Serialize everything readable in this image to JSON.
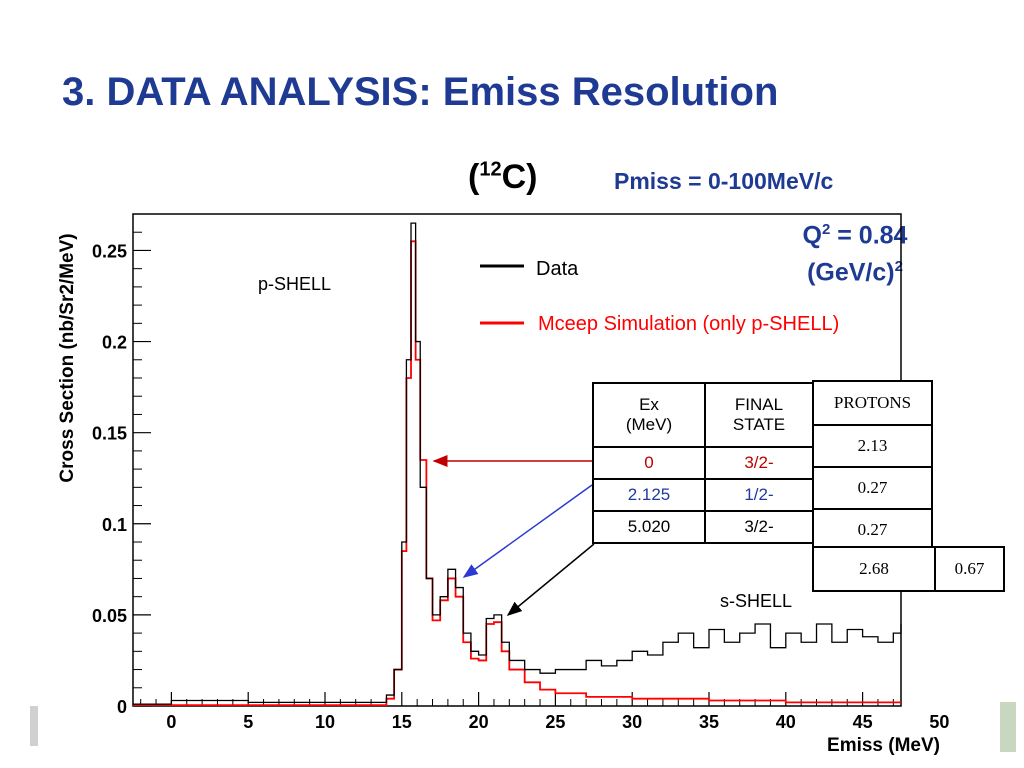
{
  "slide": {
    "title": "3. DATA ANALYSIS: Emiss Resolution",
    "nucleus_open": "(",
    "nucleus_mass": "12",
    "nucleus_symbol": "C)",
    "pmiss": "Pmiss = 0-100MeV/c",
    "q2_line1_prefix": "Q",
    "q2_sup": "2",
    "q2_line1_suffix": " = 0.84",
    "q2_line2_prefix": "(GeV/c)",
    "q2_line2_sup": "2"
  },
  "chart_data": {
    "type": "line",
    "title": "",
    "xlabel": "Emiss (MeV)",
    "ylabel": "Cross Section (nb/Sr2/MeV)",
    "xlim": [
      -2.5,
      47.5
    ],
    "ylim": [
      0,
      0.27
    ],
    "x_ticks": [
      "0",
      "5",
      "10",
      "15",
      "20",
      "25",
      "30",
      "35",
      "40",
      "45",
      "50"
    ],
    "x_tick_values": [
      0,
      5,
      10,
      15,
      20,
      25,
      30,
      35,
      40,
      45,
      50
    ],
    "y_ticks": [
      "0",
      "0.05",
      "0.1",
      "0.15",
      "0.2",
      "0.25"
    ],
    "y_tick_values": [
      0,
      0.05,
      0.1,
      0.15,
      0.2,
      0.25
    ],
    "legend_position": "top-right",
    "series": [
      {
        "name": "Data",
        "color": "#000000",
        "points": [
          [
            -2.5,
            0.001
          ],
          [
            0,
            0.003
          ],
          [
            5,
            0.002
          ],
          [
            10,
            0.002
          ],
          [
            13,
            0.002
          ],
          [
            14,
            0.006
          ],
          [
            14.5,
            0.02
          ],
          [
            15,
            0.09
          ],
          [
            15.3,
            0.19
          ],
          [
            15.6,
            0.265
          ],
          [
            15.9,
            0.2
          ],
          [
            16.2,
            0.12
          ],
          [
            16.6,
            0.07
          ],
          [
            17,
            0.05
          ],
          [
            17.5,
            0.06
          ],
          [
            18,
            0.075
          ],
          [
            18.5,
            0.065
          ],
          [
            19,
            0.04
          ],
          [
            19.5,
            0.03
          ],
          [
            20,
            0.028
          ],
          [
            20.5,
            0.048
          ],
          [
            21,
            0.05
          ],
          [
            21.5,
            0.035
          ],
          [
            22,
            0.025
          ],
          [
            23,
            0.02
          ],
          [
            24,
            0.018
          ],
          [
            25,
            0.02
          ],
          [
            26,
            0.02
          ],
          [
            27,
            0.025
          ],
          [
            28,
            0.022
          ],
          [
            29,
            0.025
          ],
          [
            30,
            0.03
          ],
          [
            31,
            0.028
          ],
          [
            32,
            0.035
          ],
          [
            33,
            0.04
          ],
          [
            34,
            0.032
          ],
          [
            35,
            0.042
          ],
          [
            36,
            0.035
          ],
          [
            37,
            0.04
          ],
          [
            38,
            0.045
          ],
          [
            39,
            0.032
          ],
          [
            40,
            0.04
          ],
          [
            41,
            0.035
          ],
          [
            42,
            0.045
          ],
          [
            43,
            0.035
          ],
          [
            44,
            0.042
          ],
          [
            45,
            0.038
          ],
          [
            46,
            0.035
          ],
          [
            47,
            0.04
          ],
          [
            47.5,
            0.045
          ]
        ]
      },
      {
        "name": "Mceep Simulation (only p-SHELL)",
        "color": "#ff0000",
        "points": [
          [
            -2.5,
            0.0005
          ],
          [
            10,
            0.0005
          ],
          [
            14,
            0.004
          ],
          [
            14.5,
            0.02
          ],
          [
            15,
            0.085
          ],
          [
            15.3,
            0.18
          ],
          [
            15.6,
            0.255
          ],
          [
            15.9,
            0.19
          ],
          [
            16.2,
            0.135
          ],
          [
            16.6,
            0.07
          ],
          [
            17,
            0.047
          ],
          [
            17.5,
            0.058
          ],
          [
            18,
            0.07
          ],
          [
            18.5,
            0.06
          ],
          [
            19,
            0.035
          ],
          [
            19.5,
            0.026
          ],
          [
            20,
            0.025
          ],
          [
            20.5,
            0.045
          ],
          [
            21,
            0.046
          ],
          [
            21.5,
            0.03
          ],
          [
            22,
            0.02
          ],
          [
            23,
            0.013
          ],
          [
            24,
            0.009
          ],
          [
            25,
            0.007
          ],
          [
            27,
            0.005
          ],
          [
            30,
            0.004
          ],
          [
            35,
            0.003
          ],
          [
            40,
            0.002
          ],
          [
            45,
            0.002
          ],
          [
            47.5,
            0.002
          ]
        ]
      }
    ],
    "annotations": {
      "p_shell": "p-SHELL",
      "s_shell": "s-SHELL"
    }
  },
  "table_states": {
    "header_ex_line1": "Ex",
    "header_ex_line2": "(MeV)",
    "header_final_line1": "FINAL",
    "header_final_line2": "STATE",
    "rows": [
      {
        "ex": "0",
        "state": "3/2-",
        "color": "#c00000"
      },
      {
        "ex": "2.125",
        "state": "1/2-",
        "color": "#1f3aa0"
      },
      {
        "ex": "5.020",
        "state": "3/2-",
        "color": "#000000"
      }
    ]
  },
  "table_protons": {
    "header": "PROTONS",
    "values": [
      "2.13",
      "0.27",
      "0.27"
    ]
  },
  "table_totals": {
    "values": [
      "2.68",
      "0.67"
    ]
  }
}
